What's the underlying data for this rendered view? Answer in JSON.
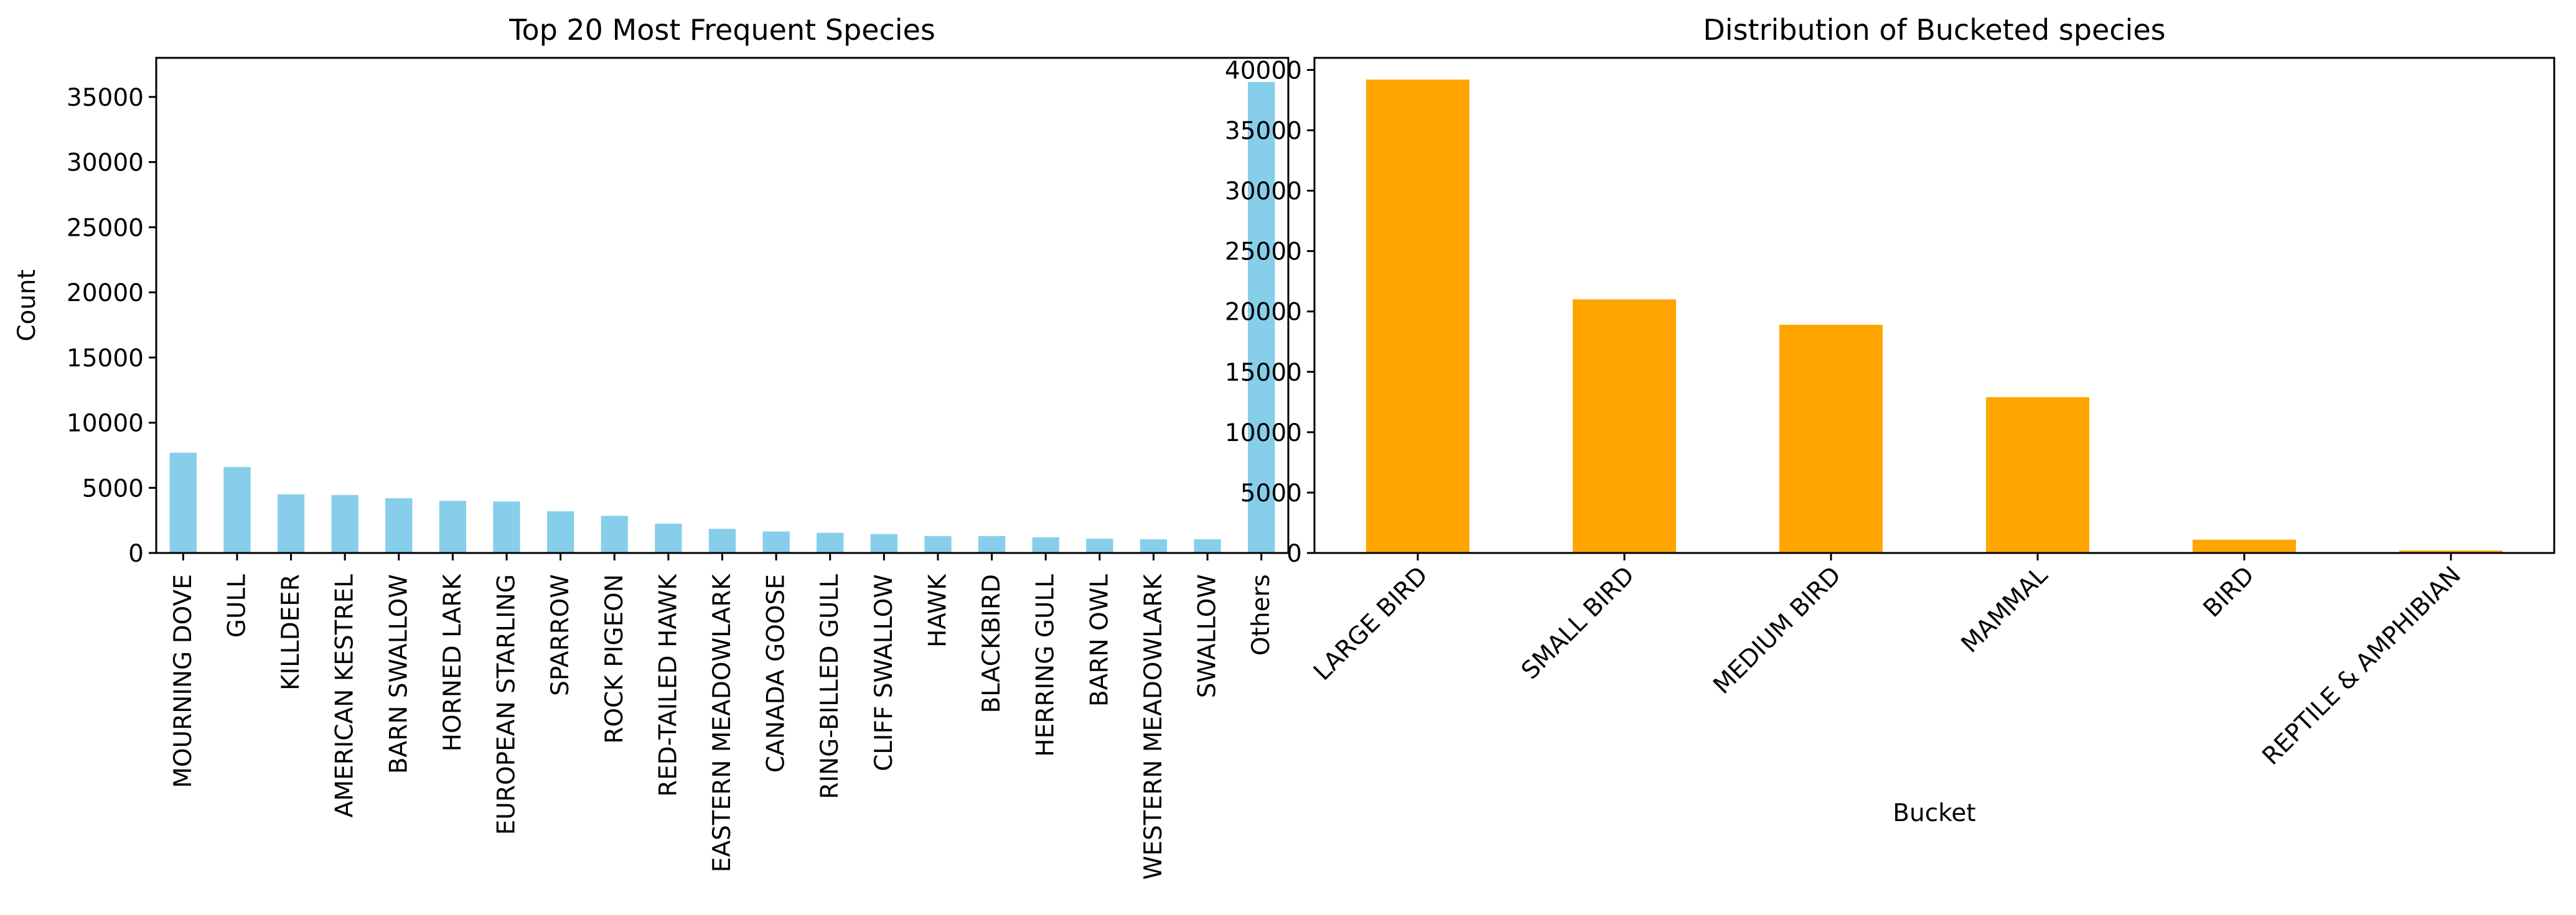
{
  "chart_data": [
    {
      "type": "bar",
      "title": "Top 20 Most Frequent Species",
      "xlabel": "",
      "ylabel": "Count",
      "ylim": [
        0,
        38000
      ],
      "yticks": [
        0,
        5000,
        10000,
        15000,
        20000,
        25000,
        30000,
        35000
      ],
      "grid": false,
      "color": "#87ceeb",
      "label_rotation": 90,
      "categories": [
        "MOURNING DOVE",
        "GULL",
        "KILLDEER",
        "AMERICAN KESTREL",
        "BARN SWALLOW",
        "HORNED LARK",
        "EUROPEAN STARLING",
        "SPARROW",
        "ROCK PIGEON",
        "RED-TAILED HAWK",
        "EASTERN MEADOWLARK",
        "CANADA GOOSE",
        "RING-BILLED GULL",
        "CLIFF SWALLOW",
        "HAWK",
        "BLACKBIRD",
        "HERRING GULL",
        "BARN OWL",
        "WESTERN MEADOWLARK",
        "SWALLOW",
        "Others"
      ],
      "values": [
        7700,
        6600,
        4500,
        4450,
        4200,
        4000,
        3950,
        3200,
        2850,
        2250,
        1850,
        1650,
        1550,
        1450,
        1300,
        1300,
        1200,
        1100,
        1050,
        1050,
        36150
      ]
    },
    {
      "type": "bar",
      "title": "Distribution of Bucketed species",
      "xlabel": "Bucket",
      "ylabel": "",
      "ylim": [
        0,
        41000
      ],
      "yticks": [
        0,
        5000,
        10000,
        15000,
        20000,
        25000,
        30000,
        35000,
        40000
      ],
      "grid": false,
      "color": "#ffa500",
      "label_rotation": 45,
      "categories": [
        "LARGE BIRD",
        "SMALL BIRD",
        "MEDIUM BIRD",
        "MAMMAL",
        "BIRD",
        "REPTILE & AMPHIBIAN"
      ],
      "values": [
        39200,
        21000,
        18900,
        12900,
        1100,
        200
      ]
    }
  ]
}
